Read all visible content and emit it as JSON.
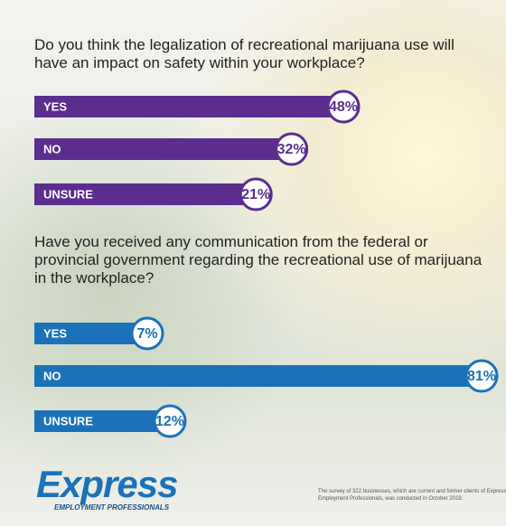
{
  "chart_data": [
    {
      "type": "bar",
      "title": "Do you think the legalization of recreational marijuana use will have an impact on safety within your workplace?",
      "categories": [
        "YES",
        "NO",
        "UNSURE"
      ],
      "values": [
        48,
        32,
        21
      ],
      "value_labels": [
        "48%",
        "32%",
        "21%"
      ],
      "color": "#5b2d8e"
    },
    {
      "type": "bar",
      "title": "Have you received any communication from the federal or provincial government regarding the recreational use of marijuana in the workplace?",
      "categories": [
        "YES",
        "NO",
        "UNSURE"
      ],
      "values": [
        7,
        81,
        12
      ],
      "value_labels": [
        "7%",
        "81%",
        "12%"
      ],
      "color": "#1b72b8"
    }
  ],
  "branding": {
    "logo": "Express",
    "tagline": "EMPLOYMENT PROFESSIONALS"
  },
  "footnote": "The survey of 322 businesses, which are current and former clients of Express Employment Professionals, was conducted in October 2018."
}
